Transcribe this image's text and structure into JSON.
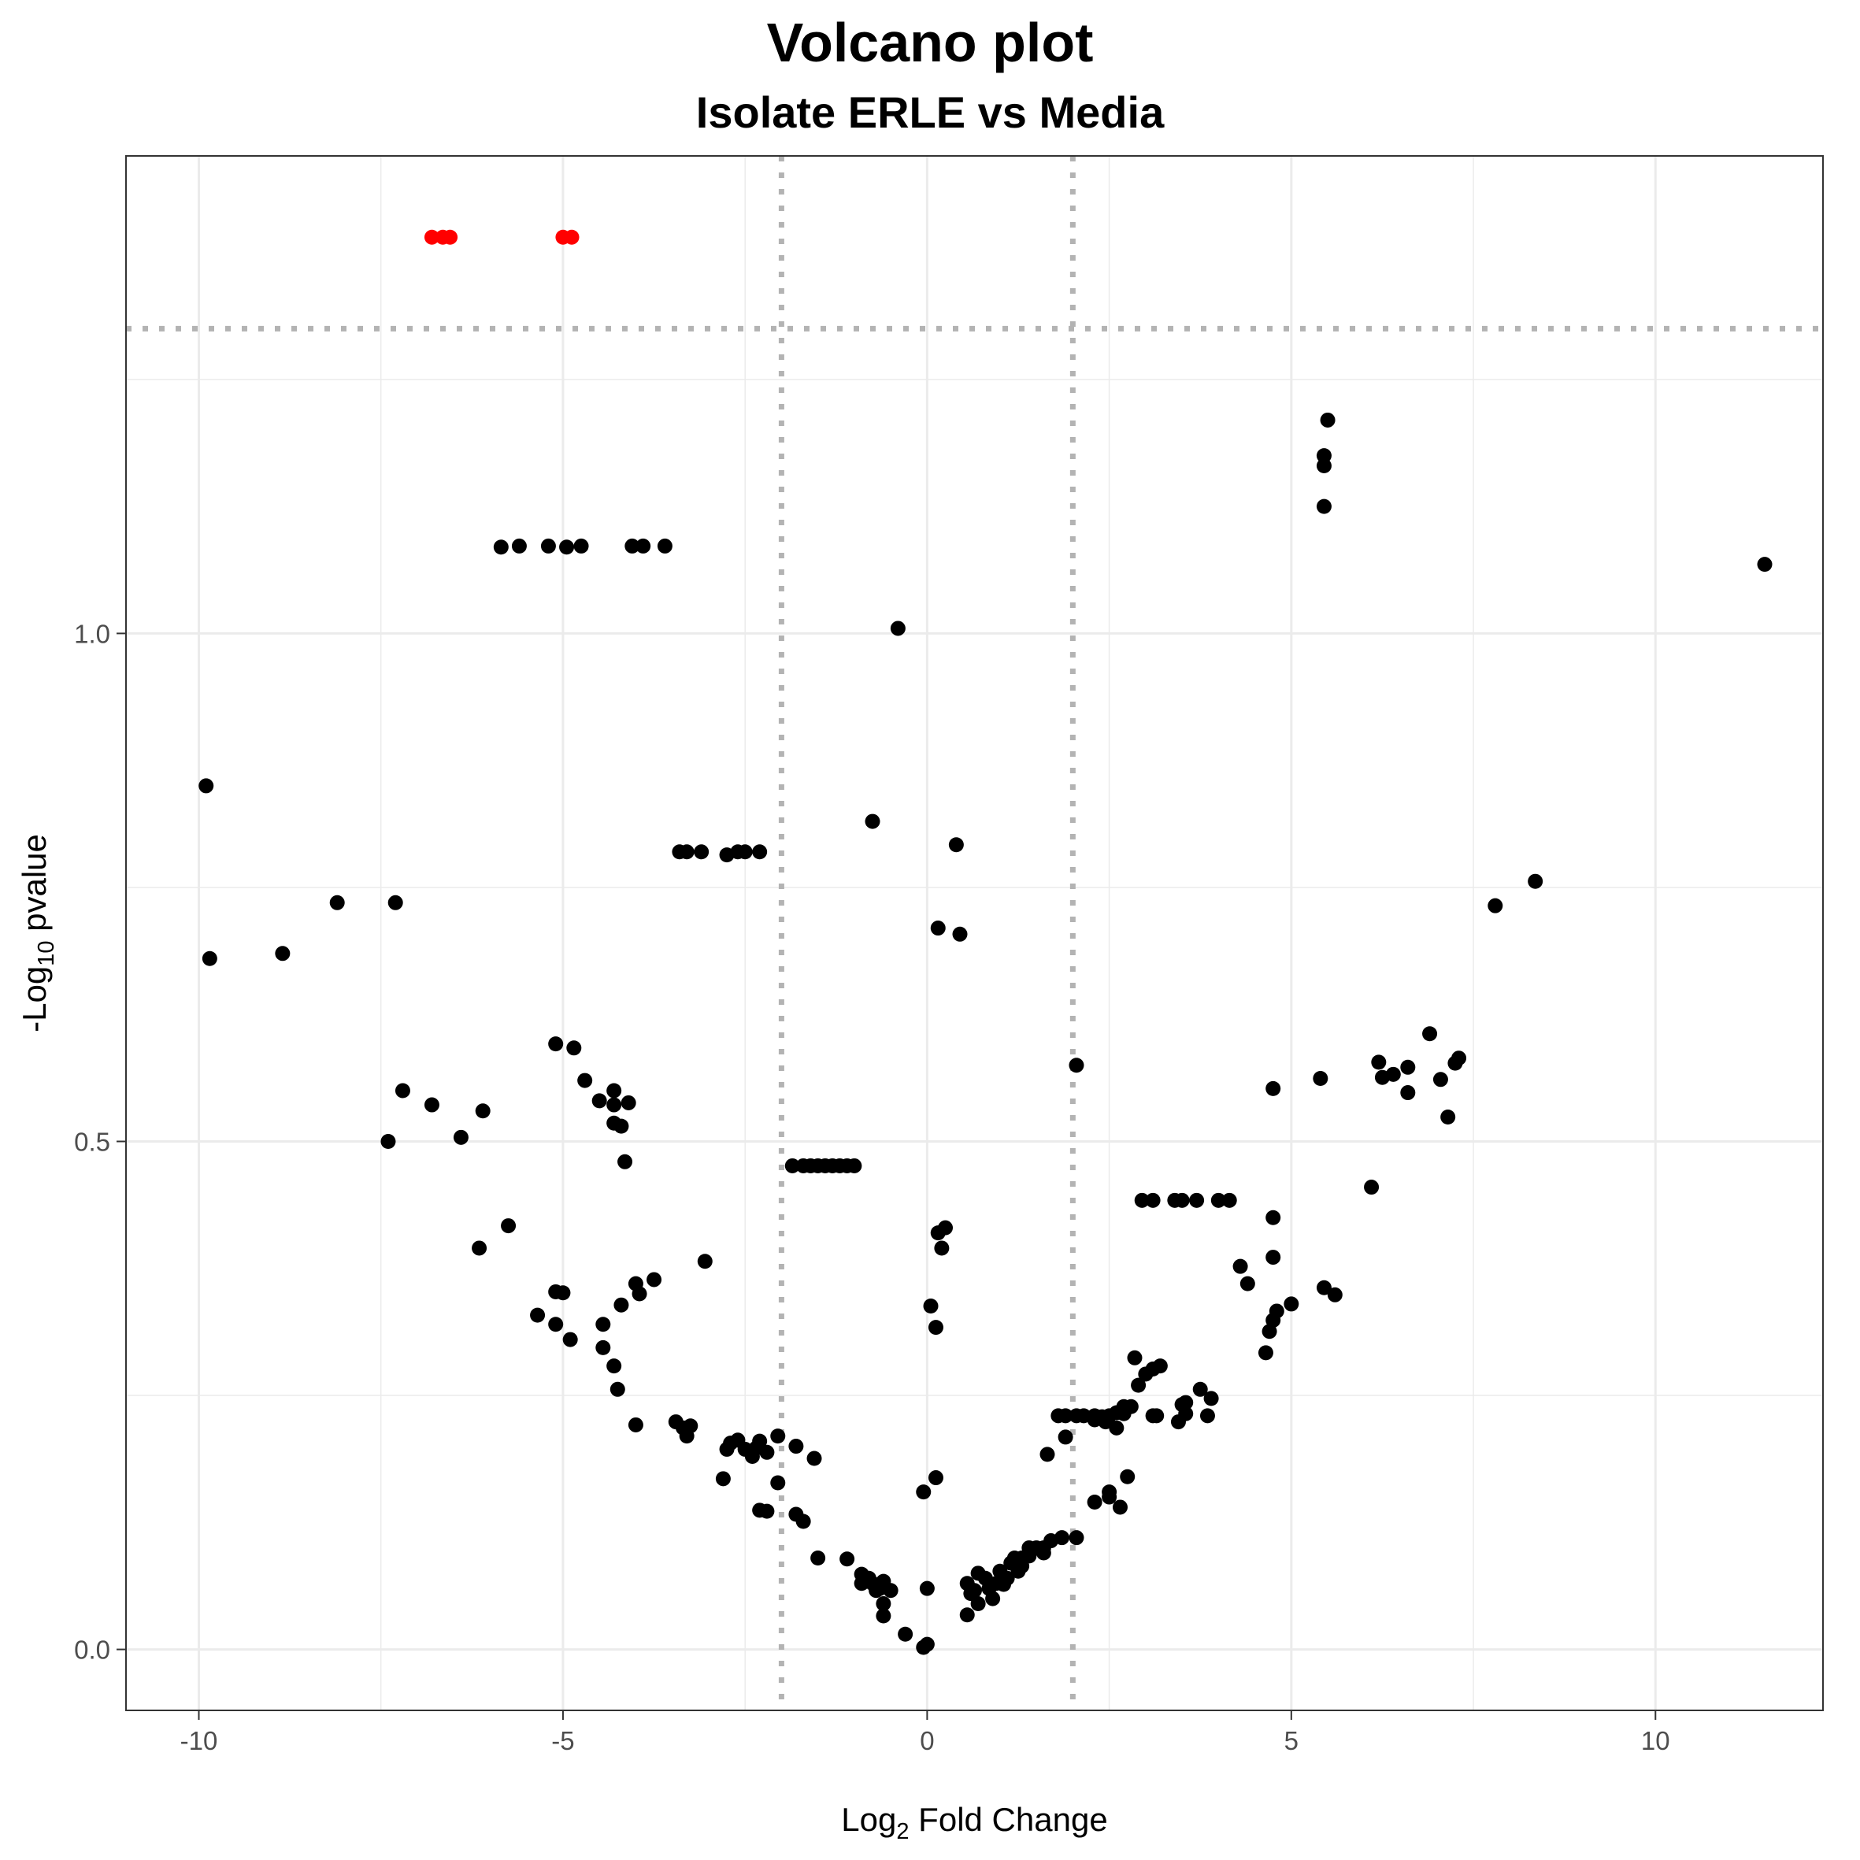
{
  "chart_data": {
    "type": "scatter",
    "title": "Volcano plot",
    "subtitle": "Isolate ERLE vs Media",
    "xlabel": {
      "base": "Log",
      "sub": "2",
      "rest": " Fold Change"
    },
    "ylabel": {
      "base": "-Log",
      "sub": "10",
      "rest": " pvalue"
    },
    "xlim": [
      -11,
      12.3
    ],
    "ylim": [
      -0.06,
      1.47
    ],
    "xticks": [
      -10,
      -5,
      0,
      5,
      10
    ],
    "xtick_labels": [
      "-10",
      "-5",
      "0",
      "5",
      "10"
    ],
    "yticks": [
      0.0,
      0.5,
      1.0
    ],
    "ytick_labels": [
      "0.0",
      "0.5",
      "1.0"
    ],
    "thresholds": {
      "fold_change": [
        -2,
        2
      ],
      "neg_log10_pvalue": 1.3
    },
    "grid": true,
    "legend": "none",
    "colors": {
      "significant": "#ff0000",
      "not_significant": "#000000",
      "threshold_line": "#b3b3b3"
    },
    "series": [
      {
        "color": "#ff0000",
        "points": [
          [
            -6.8,
            1.39
          ],
          [
            -6.65,
            1.39
          ],
          [
            -6.55,
            1.39
          ],
          [
            -5.0,
            1.39
          ],
          [
            -4.88,
            1.39
          ]
        ]
      },
      {
        "color": "#000000",
        "points": [
          [
            -5.85,
            1.085
          ],
          [
            -5.6,
            1.086
          ],
          [
            -5.2,
            1.086
          ],
          [
            -4.95,
            1.085
          ],
          [
            -4.75,
            1.086
          ],
          [
            -4.05,
            1.086
          ],
          [
            -3.9,
            1.086
          ],
          [
            -3.6,
            1.086
          ],
          [
            -0.4,
            1.005
          ],
          [
            5.5,
            1.21
          ],
          [
            5.45,
            1.175
          ],
          [
            5.45,
            1.165
          ],
          [
            5.45,
            1.125
          ],
          [
            11.5,
            1.068
          ],
          [
            -9.9,
            0.85
          ],
          [
            -9.85,
            0.68
          ],
          [
            -8.85,
            0.685
          ],
          [
            -8.1,
            0.735
          ],
          [
            -7.3,
            0.735
          ],
          [
            -3.4,
            0.785
          ],
          [
            -3.3,
            0.785
          ],
          [
            -3.1,
            0.785
          ],
          [
            -2.75,
            0.782
          ],
          [
            -2.6,
            0.785
          ],
          [
            -2.5,
            0.785
          ],
          [
            -2.3,
            0.785
          ],
          [
            -0.75,
            0.815
          ],
          [
            0.4,
            0.792
          ],
          [
            0.15,
            0.71
          ],
          [
            0.45,
            0.704
          ],
          [
            7.8,
            0.732
          ],
          [
            8.35,
            0.756
          ],
          [
            -5.1,
            0.596
          ],
          [
            -4.85,
            0.592
          ],
          [
            -4.7,
            0.56
          ],
          [
            -4.5,
            0.54
          ],
          [
            -4.3,
            0.55
          ],
          [
            -4.1,
            0.538
          ],
          [
            -4.3,
            0.536
          ],
          [
            -4.3,
            0.518
          ],
          [
            -4.2,
            0.515
          ],
          [
            -4.15,
            0.48
          ],
          [
            -7.2,
            0.55
          ],
          [
            -6.8,
            0.536
          ],
          [
            -6.1,
            0.53
          ],
          [
            -7.4,
            0.5
          ],
          [
            -6.4,
            0.504
          ],
          [
            2.05,
            0.575
          ],
          [
            4.75,
            0.552
          ],
          [
            5.4,
            0.562
          ],
          [
            6.2,
            0.578
          ],
          [
            6.25,
            0.563
          ],
          [
            6.4,
            0.566
          ],
          [
            6.6,
            0.573
          ],
          [
            6.6,
            0.548
          ],
          [
            6.9,
            0.606
          ],
          [
            7.05,
            0.561
          ],
          [
            7.25,
            0.577
          ],
          [
            7.3,
            0.582
          ],
          [
            7.15,
            0.524
          ],
          [
            6.1,
            0.455
          ],
          [
            -1.85,
            0.476
          ],
          [
            -1.7,
            0.476
          ],
          [
            -1.6,
            0.476
          ],
          [
            -1.5,
            0.476
          ],
          [
            -1.4,
            0.476
          ],
          [
            -1.3,
            0.476
          ],
          [
            -1.2,
            0.476
          ],
          [
            -1.1,
            0.476
          ],
          [
            -1.0,
            0.476
          ],
          [
            2.95,
            0.442
          ],
          [
            3.1,
            0.442
          ],
          [
            3.4,
            0.442
          ],
          [
            3.5,
            0.442
          ],
          [
            3.7,
            0.442
          ],
          [
            4.0,
            0.442
          ],
          [
            4.15,
            0.442
          ],
          [
            -5.75,
            0.417
          ],
          [
            -6.15,
            0.395
          ],
          [
            -3.05,
            0.382
          ],
          [
            0.15,
            0.41
          ],
          [
            0.25,
            0.415
          ],
          [
            0.2,
            0.395
          ],
          [
            4.75,
            0.425
          ],
          [
            4.75,
            0.386
          ],
          [
            4.3,
            0.377
          ],
          [
            4.4,
            0.36
          ],
          [
            5.45,
            0.356
          ],
          [
            5.6,
            0.349
          ],
          [
            5.0,
            0.34
          ],
          [
            4.8,
            0.333
          ],
          [
            4.75,
            0.324
          ],
          [
            4.7,
            0.313
          ],
          [
            4.65,
            0.292
          ],
          [
            -5.1,
            0.352
          ],
          [
            -5.0,
            0.351
          ],
          [
            -5.35,
            0.329
          ],
          [
            -5.1,
            0.32
          ],
          [
            -4.9,
            0.305
          ],
          [
            -4.45,
            0.32
          ],
          [
            -4.45,
            0.297
          ],
          [
            -4.3,
            0.279
          ],
          [
            -4.25,
            0.256
          ],
          [
            -4.2,
            0.339
          ],
          [
            -4.0,
            0.36
          ],
          [
            -3.95,
            0.35
          ],
          [
            -3.75,
            0.364
          ],
          [
            0.05,
            0.338
          ],
          [
            0.12,
            0.317
          ],
          [
            2.85,
            0.287
          ],
          [
            3.0,
            0.271
          ],
          [
            3.1,
            0.276
          ],
          [
            3.2,
            0.279
          ],
          [
            2.9,
            0.26
          ],
          [
            3.75,
            0.256
          ],
          [
            3.9,
            0.247
          ],
          [
            3.5,
            0.241
          ],
          [
            3.55,
            0.243
          ],
          [
            3.45,
            0.224
          ],
          [
            3.55,
            0.232
          ],
          [
            3.85,
            0.23
          ],
          [
            1.8,
            0.23
          ],
          [
            1.9,
            0.23
          ],
          [
            2.05,
            0.23
          ],
          [
            2.15,
            0.23
          ],
          [
            2.3,
            0.23
          ],
          [
            2.4,
            0.229
          ],
          [
            2.5,
            0.23
          ],
          [
            2.45,
            0.224
          ],
          [
            2.3,
            0.226
          ],
          [
            2.6,
            0.233
          ],
          [
            2.7,
            0.239
          ],
          [
            2.8,
            0.239
          ],
          [
            2.7,
            0.232
          ],
          [
            2.6,
            0.218
          ],
          [
            3.1,
            0.23
          ],
          [
            3.15,
            0.23
          ],
          [
            1.9,
            0.209
          ],
          [
            1.65,
            0.192
          ],
          [
            2.75,
            0.17
          ],
          [
            2.5,
            0.155
          ],
          [
            2.3,
            0.145
          ],
          [
            2.5,
            0.15
          ],
          [
            2.65,
            0.14
          ],
          [
            -4.0,
            0.221
          ],
          [
            -3.45,
            0.224
          ],
          [
            -3.35,
            0.218
          ],
          [
            -3.3,
            0.21
          ],
          [
            -3.25,
            0.22
          ],
          [
            -2.75,
            0.197
          ],
          [
            -2.7,
            0.203
          ],
          [
            -2.6,
            0.206
          ],
          [
            -2.5,
            0.197
          ],
          [
            -2.35,
            0.198
          ],
          [
            -2.3,
            0.205
          ],
          [
            -2.4,
            0.19
          ],
          [
            -2.2,
            0.194
          ],
          [
            -2.05,
            0.21
          ],
          [
            -1.8,
            0.2
          ],
          [
            -1.55,
            0.188
          ],
          [
            -2.8,
            0.168
          ],
          [
            -2.05,
            0.164
          ],
          [
            -0.05,
            0.155
          ],
          [
            0.12,
            0.169
          ],
          [
            -2.3,
            0.137
          ],
          [
            -2.2,
            0.136
          ],
          [
            -1.8,
            0.133
          ],
          [
            -1.7,
            0.126
          ],
          [
            -1.5,
            0.09
          ],
          [
            -1.1,
            0.089
          ],
          [
            -0.9,
            0.074
          ],
          [
            -0.9,
            0.065
          ],
          [
            -0.8,
            0.07
          ],
          [
            -0.75,
            0.065
          ],
          [
            -0.7,
            0.058
          ],
          [
            -0.65,
            0.06
          ],
          [
            -0.6,
            0.067
          ],
          [
            -0.5,
            0.058
          ],
          [
            -0.6,
            0.045
          ],
          [
            -0.6,
            0.033
          ],
          [
            -0.3,
            0.015
          ],
          [
            0.0,
            0.06
          ],
          [
            0.0,
            0.005
          ],
          [
            -0.05,
            0.002
          ],
          [
            0.55,
            0.065
          ],
          [
            0.6,
            0.055
          ],
          [
            0.7,
            0.075
          ],
          [
            0.8,
            0.07
          ],
          [
            0.7,
            0.045
          ],
          [
            0.55,
            0.034
          ],
          [
            0.85,
            0.06
          ],
          [
            0.9,
            0.05
          ],
          [
            0.95,
            0.065
          ],
          [
            1.0,
            0.077
          ],
          [
            1.1,
            0.07
          ],
          [
            1.15,
            0.085
          ],
          [
            1.2,
            0.09
          ],
          [
            1.3,
            0.09
          ],
          [
            1.25,
            0.077
          ],
          [
            1.4,
            0.092
          ],
          [
            1.4,
            0.1
          ],
          [
            1.5,
            0.1
          ],
          [
            1.6,
            0.1
          ],
          [
            1.7,
            0.107
          ],
          [
            1.85,
            0.11
          ],
          [
            2.05,
            0.11
          ],
          [
            1.6,
            0.095
          ],
          [
            1.3,
            0.082
          ],
          [
            1.05,
            0.064
          ],
          [
            0.65,
            0.058
          ]
        ]
      }
    ]
  }
}
